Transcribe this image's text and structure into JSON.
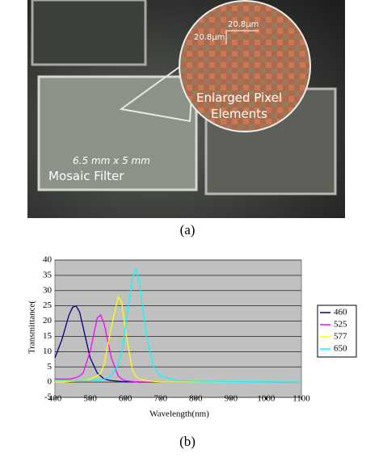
{
  "photo": {
    "scale_labels": [
      "20.8µm",
      "20.8µm"
    ],
    "magnifier_label": [
      "Enlarged Pixel",
      "Elements"
    ],
    "size_label": "6.5 mm x 5 mm",
    "filter_label": "Mosaic Filter",
    "caption": "(a)"
  },
  "chart_data": {
    "type": "line",
    "caption": "(b)",
    "x_label": "Wavelength(nm)",
    "y_label": "Transmittance(",
    "x": [
      400,
      420,
      440,
      450,
      460,
      470,
      480,
      500,
      520,
      530,
      540,
      560,
      580,
      590,
      600,
      620,
      630,
      640,
      660,
      680,
      700,
      750,
      800,
      900,
      1000,
      1100
    ],
    "series": [
      {
        "name": "460",
        "color": "#000080",
        "values": [
          8,
          14,
          22,
          24.5,
          25,
          23,
          18,
          8,
          3,
          2,
          1,
          0.5,
          0.3,
          0.2,
          0.2,
          0.1,
          0.1,
          0,
          0,
          0,
          0,
          0,
          0,
          0,
          0,
          0
        ]
      },
      {
        "name": "525",
        "color": "#ff00ff",
        "values": [
          1,
          1,
          1,
          1.2,
          1.5,
          2,
          3,
          10,
          21,
          22,
          19,
          8,
          2,
          1,
          0.5,
          0.2,
          0.1,
          0.1,
          0,
          0,
          0,
          0,
          0,
          0,
          0,
          0
        ]
      },
      {
        "name": "577",
        "color": "#ffff00",
        "values": [
          0,
          0,
          0.2,
          0.3,
          0.4,
          0.5,
          0.5,
          1,
          2,
          3,
          6,
          18,
          28,
          26,
          17,
          4,
          2,
          1,
          0.5,
          0.2,
          0,
          0,
          0,
          0,
          0,
          0
        ]
      },
      {
        "name": "650",
        "color": "#00ffff",
        "values": [
          0.5,
          0.5,
          0.5,
          0.5,
          0.5,
          0.5,
          0.5,
          0.5,
          0.7,
          0.8,
          1,
          2,
          6,
          10,
          18,
          34,
          37,
          33,
          15,
          5,
          2,
          0.5,
          0.3,
          0.2,
          0.1,
          0
        ]
      }
    ],
    "xlim": [
      400,
      1100
    ],
    "xticks": [
      400,
      500,
      600,
      700,
      800,
      900,
      1000,
      1100
    ],
    "ylim": [
      -5,
      40
    ],
    "yticks": [
      -5,
      0,
      5,
      10,
      15,
      20,
      25,
      30,
      35,
      40
    ],
    "grid": true,
    "plot_background": "#c0c0c0",
    "legend": "right"
  }
}
